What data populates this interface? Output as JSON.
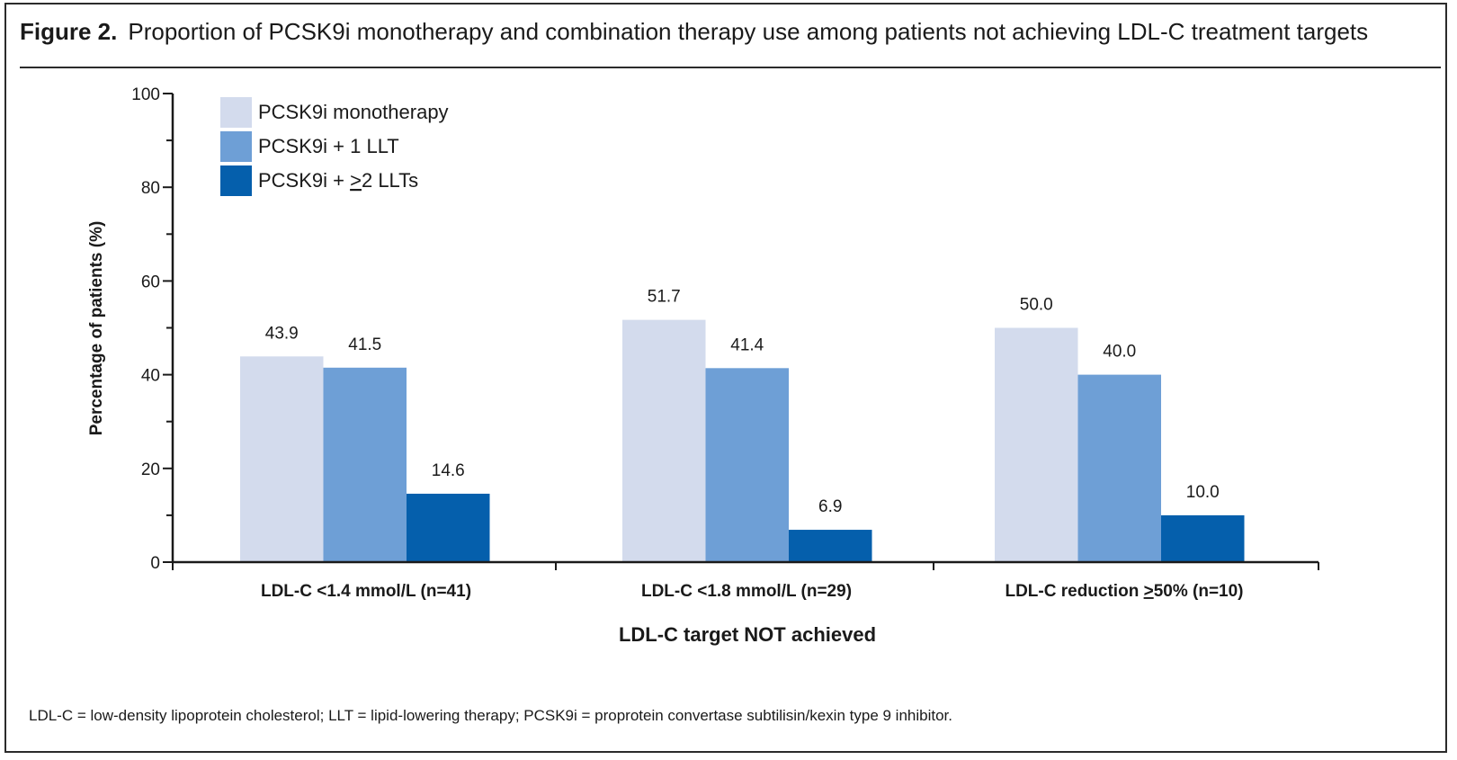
{
  "figure": {
    "label": "Figure 2.",
    "title": "Proportion of PCSK9i monotherapy and combination therapy use among patients not achieving LDL-C treatment targets"
  },
  "footnote": "LDL-C = low-density lipoprotein cholesterol; LLT = lipid-lowering therapy; PCSK9i = proprotein convertase subtilisin/kexin type 9 inhibitor.",
  "chart_data": {
    "type": "bar",
    "title": "",
    "xlabel": "LDL-C target NOT achieved",
    "ylabel": "Percentage of patients (%)",
    "ylim": [
      0,
      100
    ],
    "yticks": [
      0,
      20,
      40,
      60,
      80,
      100
    ],
    "grid": false,
    "legend_position": "top-left",
    "categories": [
      {
        "pre": "LDL-C <1.4 mmol/L (n=41)",
        "ul": "",
        "post": ""
      },
      {
        "pre": "LDL-C <1.8 mmol/L (n=29)",
        "ul": "",
        "post": ""
      },
      {
        "pre": "LDL-C reduction ",
        "ul": ">",
        "post": "50% (n=10)"
      }
    ],
    "series": [
      {
        "name": {
          "pre": "PCSK9i monotherapy",
          "ul": "",
          "post": ""
        },
        "color": "#d3dbed",
        "values": [
          43.9,
          51.7,
          50.0
        ],
        "labels": [
          "43.9",
          "51.7",
          "50.0"
        ]
      },
      {
        "name": {
          "pre": "PCSK9i + 1 LLT",
          "ul": "",
          "post": ""
        },
        "color": "#6e9fd6",
        "values": [
          41.5,
          41.4,
          40.0
        ],
        "labels": [
          "41.5",
          "41.4",
          "40.0"
        ]
      },
      {
        "name": {
          "pre": "PCSK9i + ",
          "ul": ">",
          "post": "2 LLTs"
        },
        "color": "#055fac",
        "values": [
          14.6,
          6.9,
          10.0
        ],
        "labels": [
          "14.6",
          "6.9",
          "10.0"
        ]
      }
    ]
  }
}
